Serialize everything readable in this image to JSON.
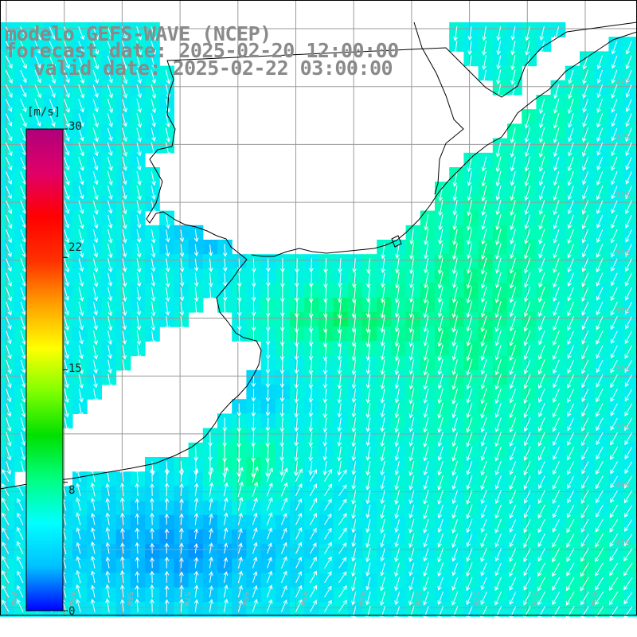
{
  "header": {
    "line1": "modelo GEFS-WAVE (NCEP)",
    "line2": "forecast date: 2025-02-20 12:00:00",
    "line3": "valid date: 2025-02-22 03:00:00"
  },
  "colorbar": {
    "unit": "[m/s]",
    "ticks": [
      "30",
      "22",
      "15",
      "8",
      "0"
    ],
    "tick_values": [
      30,
      22,
      15,
      8,
      0
    ],
    "colors": [
      "#0000ff",
      "#00c0ff",
      "#00ffff",
      "#00ff80",
      "#00e000",
      "#80ff00",
      "#ffff00",
      "#ffa000",
      "#ff3000",
      "#ff0000",
      "#e0006a",
      "#b0007a"
    ]
  },
  "map": {
    "lat_labels": [
      "33S",
      "34S",
      "35S",
      "36S",
      "37S",
      "38S",
      "39S",
      "40S",
      "41S"
    ],
    "lon_labels": [
      "60W",
      "59W",
      "58W",
      "57W",
      "56W",
      "55W",
      "54W",
      "53W",
      "52W",
      "51W",
      "50W"
    ],
    "field": "wind speed"
  }
}
